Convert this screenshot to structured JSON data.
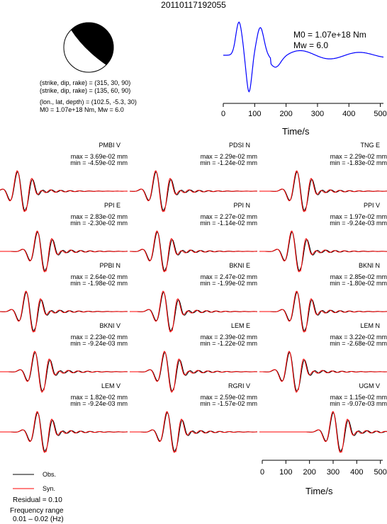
{
  "event_id": "20110117192055",
  "beachball": {
    "plane1": "(strike, dip, rake) = (315, 30, 90)",
    "plane2": "(strike, dip, rake) = (135, 60, 90)",
    "location": "(lon., lat, depth) = (102.5, -5.3, 30)",
    "moment_line": "M0 = 1.07e+18 Nm, Mw = 6.0",
    "colors": {
      "fill": "#000000",
      "background": "#ffffff"
    }
  },
  "stf": {
    "m0": "M0 = 1.07e+18 Nm",
    "mw": "Mw = 6.0",
    "xlabel": "Time/s",
    "xticks": [
      0,
      100,
      200,
      300,
      400,
      500
    ],
    "xlim": [
      0,
      510
    ],
    "color": "#0000ff"
  },
  "legend": {
    "obs_label": "Obs.",
    "syn_label": "Syn.",
    "obs_color": "#000000",
    "syn_color": "#ff0000",
    "residual": "Residual = 0.10",
    "freq_title": "Frequency range",
    "freq_range": "0.01 – 0.02 (Hz)"
  },
  "bottom_axis": {
    "xlabel": "Time/s",
    "xticks": [
      0,
      100,
      200,
      300,
      400,
      500
    ],
    "xlim": [
      0,
      510
    ]
  },
  "chart_data": {
    "type": "line",
    "title": "20110117192055",
    "xlabel": "Time/s",
    "xlim": [
      0,
      510
    ],
    "series": [
      {
        "name": "Obs.",
        "color": "#000000"
      },
      {
        "name": "Syn.",
        "color": "#ff0000"
      }
    ],
    "panels": [
      {
        "station": "PMBI V",
        "max": "max = 3.69e-02 mm",
        "min": "min = -4.59e-02 mm",
        "peak_time": 85
      },
      {
        "station": "PDSI N",
        "max": "max = 2.29e-02 mm",
        "min": "min = -1.24e-02 mm",
        "peak_time": 120
      },
      {
        "station": "TNG E",
        "max": "max = 2.29e-02 mm",
        "min": "min = -1.83e-02 mm",
        "peak_time": 165
      },
      {
        "station": "PPI E",
        "max": "max = 2.83e-02 mm",
        "min": "min = -2.30e-02 mm",
        "peak_time": 165
      },
      {
        "station": "PPI N",
        "max": "max = 2.27e-02 mm",
        "min": "min = -1.14e-02 mm",
        "peak_time": 125
      },
      {
        "station": "PPI V",
        "max": "max = 1.97e-02 mm",
        "min": "min = -9.24e-03 mm",
        "peak_time": 145
      },
      {
        "station": "PPBI N",
        "max": "max = 2.64e-02 mm",
        "min": "min = -1.98e-02 mm",
        "peak_time": 120
      },
      {
        "station": "BKNI E",
        "max": "max = 2.47e-02 mm",
        "min": "min = -1.99e-02 mm",
        "peak_time": 150
      },
      {
        "station": "BKNI N",
        "max": "max = 2.85e-02 mm",
        "min": "min = -1.80e-02 mm",
        "peak_time": 165
      },
      {
        "station": "BKNI V",
        "max": "max = 2.23e-02 mm",
        "min": "min = -9.24e-03 mm",
        "peak_time": 155
      },
      {
        "station": "LEM E",
        "max": "max = 2.39e-02 mm",
        "min": "min = -1.22e-02 mm",
        "peak_time": 155
      },
      {
        "station": "LEM N",
        "max": "max = 3.22e-02 mm",
        "min": "min = -2.68e-02 mm",
        "peak_time": 135
      },
      {
        "station": "LEM V",
        "max": "max = 1.82e-02 mm",
        "min": "min = -9.24e-03 mm",
        "peak_time": 165
      },
      {
        "station": "RGRI V",
        "max": "max = 2.59e-02 mm",
        "min": "min = -1.57e-02 mm",
        "peak_time": 165
      },
      {
        "station": "UGM V",
        "max": "max = 1.15e-02 mm",
        "min": "min = -9.07e-03 mm",
        "peak_time": 310
      }
    ]
  }
}
